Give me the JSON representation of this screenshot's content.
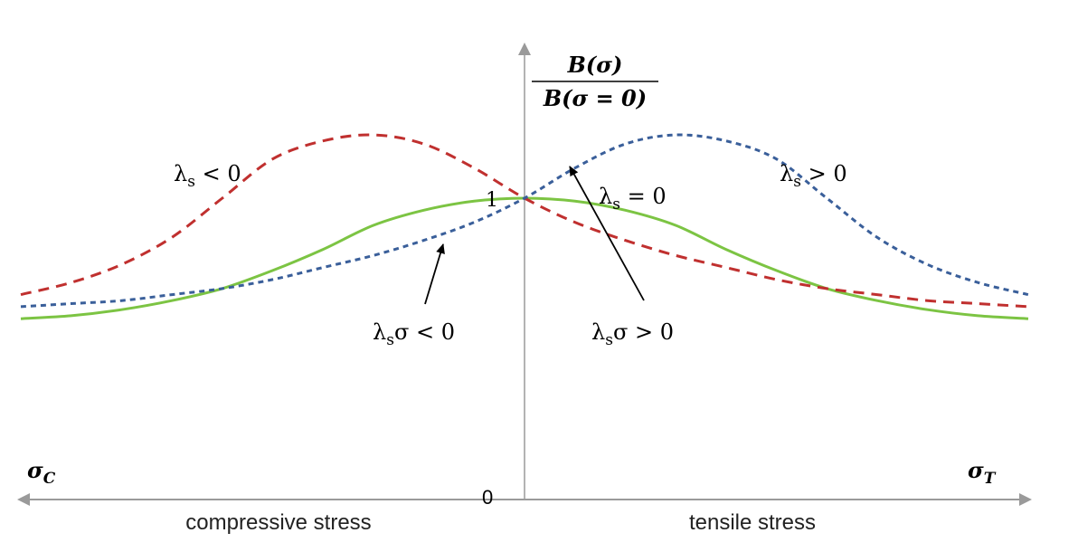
{
  "chart_data": {
    "type": "line",
    "title": "",
    "y_axis_label": {
      "numerator": "B(σ)",
      "denominator": "B(σ = 0)"
    },
    "x_axis_labels": {
      "left_end": "σ",
      "left_end_sub": "C",
      "right_end": "σ",
      "right_end_sub": "T"
    },
    "region_labels": {
      "left": "compressive stress",
      "right": "tensile stress"
    },
    "ticks": {
      "origin": "0",
      "one": "1"
    },
    "x_range": [
      -1,
      1
    ],
    "y_range": [
      0,
      1.3
    ],
    "grid": false,
    "series": [
      {
        "name": "λs < 0",
        "color": "#c0302f",
        "style": "dashed",
        "points": [
          [
            -1.0,
            0.68
          ],
          [
            -0.9,
            0.72
          ],
          [
            -0.8,
            0.78
          ],
          [
            -0.7,
            0.87
          ],
          [
            -0.6,
            1.0
          ],
          [
            -0.5,
            1.13
          ],
          [
            -0.4,
            1.19
          ],
          [
            -0.3,
            1.21
          ],
          [
            -0.2,
            1.18
          ],
          [
            -0.1,
            1.1
          ],
          [
            0.0,
            1.0
          ],
          [
            0.1,
            0.92
          ],
          [
            0.2,
            0.86
          ],
          [
            0.3,
            0.81
          ],
          [
            0.4,
            0.77
          ],
          [
            0.5,
            0.73
          ],
          [
            0.6,
            0.7
          ],
          [
            0.7,
            0.68
          ],
          [
            0.8,
            0.66
          ],
          [
            0.9,
            0.65
          ],
          [
            1.0,
            0.64
          ]
        ]
      },
      {
        "name": "λs > 0",
        "color": "#3a5f9a",
        "style": "dotted",
        "points": [
          [
            -1.0,
            0.64
          ],
          [
            -0.9,
            0.65
          ],
          [
            -0.8,
            0.66
          ],
          [
            -0.7,
            0.68
          ],
          [
            -0.6,
            0.7
          ],
          [
            -0.5,
            0.73
          ],
          [
            -0.4,
            0.77
          ],
          [
            -0.3,
            0.81
          ],
          [
            -0.2,
            0.86
          ],
          [
            -0.1,
            0.92
          ],
          [
            0.0,
            1.0
          ],
          [
            0.1,
            1.1
          ],
          [
            0.2,
            1.18
          ],
          [
            0.3,
            1.21
          ],
          [
            0.4,
            1.19
          ],
          [
            0.5,
            1.13
          ],
          [
            0.6,
            1.0
          ],
          [
            0.7,
            0.87
          ],
          [
            0.8,
            0.78
          ],
          [
            0.9,
            0.72
          ],
          [
            1.0,
            0.68
          ]
        ]
      },
      {
        "name": "λs = 0",
        "color": "#7cc443",
        "style": "solid",
        "points": [
          [
            -1.0,
            0.6
          ],
          [
            -0.9,
            0.61
          ],
          [
            -0.8,
            0.63
          ],
          [
            -0.7,
            0.66
          ],
          [
            -0.6,
            0.7
          ],
          [
            -0.5,
            0.76
          ],
          [
            -0.4,
            0.83
          ],
          [
            -0.3,
            0.91
          ],
          [
            -0.2,
            0.96
          ],
          [
            -0.1,
            0.99
          ],
          [
            0.0,
            1.0
          ],
          [
            0.1,
            0.99
          ],
          [
            0.2,
            0.96
          ],
          [
            0.3,
            0.91
          ],
          [
            0.4,
            0.83
          ],
          [
            0.5,
            0.76
          ],
          [
            0.6,
            0.7
          ],
          [
            0.7,
            0.66
          ],
          [
            0.8,
            0.63
          ],
          [
            0.9,
            0.61
          ],
          [
            1.0,
            0.6
          ]
        ]
      }
    ],
    "annotations": [
      {
        "text": "λsσ < 0",
        "base": "λ",
        "sub": "s",
        "rest": "σ < 0",
        "points_to": "λs > 0"
      },
      {
        "text": "λsσ > 0",
        "base": "λ",
        "sub": "s",
        "rest": "σ > 0",
        "points_to": "λs > 0"
      }
    ],
    "series_labels": [
      {
        "base": "λ",
        "sub": "s",
        "rest": " < 0"
      },
      {
        "base": "λ",
        "sub": "s",
        "rest": " > 0"
      },
      {
        "base": "λ",
        "sub": "s",
        "rest": " = 0"
      }
    ]
  }
}
